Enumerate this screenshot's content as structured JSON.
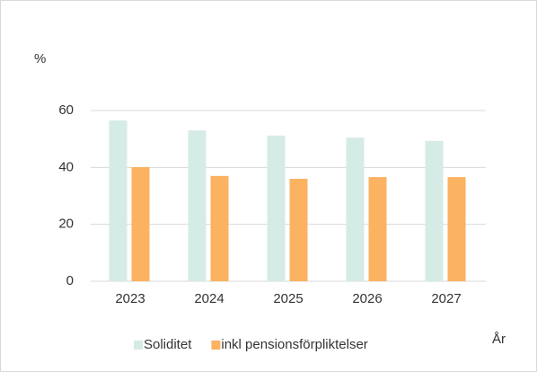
{
  "chart_data": {
    "type": "bar",
    "y_axis_label": "%",
    "x_axis_label": "År",
    "categories": [
      "2023",
      "2024",
      "2025",
      "2026",
      "2027"
    ],
    "series": [
      {
        "name": "Soliditet",
        "color": "#d5ebe6",
        "values": [
          56.5,
          53,
          51.2,
          50.5,
          49.3
        ]
      },
      {
        "name": "inkl pensionsförpliktelser",
        "color": "#fbb261",
        "values": [
          40.1,
          37,
          36,
          36.6,
          36.6
        ]
      }
    ],
    "ylim": [
      0,
      60
    ],
    "yticks": [
      0,
      20,
      40,
      60
    ],
    "grid": true
  }
}
